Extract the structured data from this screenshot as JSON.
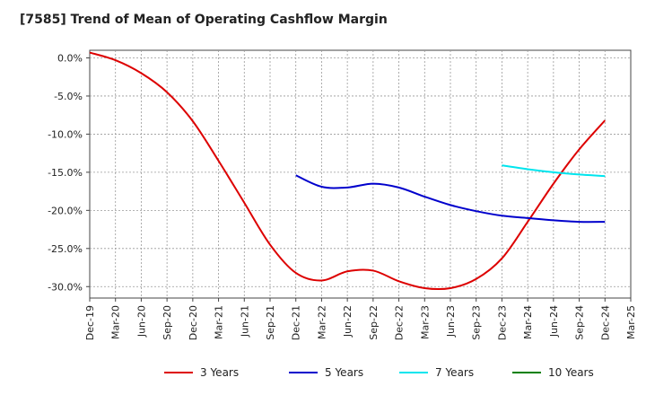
{
  "chart_data": {
    "type": "line",
    "title": "[7585]  Trend of Mean of Operating Cashflow Margin",
    "xlabel": "",
    "ylabel": "",
    "x_ticks": [
      "Dec-19",
      "Mar-20",
      "Jun-20",
      "Sep-20",
      "Dec-20",
      "Mar-21",
      "Jun-21",
      "Sep-21",
      "Dec-21",
      "Mar-22",
      "Jun-22",
      "Sep-22",
      "Dec-22",
      "Mar-23",
      "Jun-23",
      "Sep-23",
      "Dec-23",
      "Mar-24",
      "Jun-24",
      "Sep-24",
      "Dec-24",
      "Mar-25"
    ],
    "y_ticks": [
      0,
      -5,
      -10,
      -15,
      -20,
      -25,
      -30
    ],
    "y_tick_labels": [
      "0.0%",
      "-5.0%",
      "-10.0%",
      "-15.0%",
      "-20.0%",
      "-25.0%",
      "-30.0%"
    ],
    "ylim": [
      -31.5,
      1.0
    ],
    "grid": true,
    "legend_position": "bottom",
    "series": [
      {
        "name": "3 Years",
        "color": "#dd0000",
        "x": [
          "Dec-19",
          "Mar-20",
          "Jun-20",
          "Sep-20",
          "Dec-20",
          "Mar-21",
          "Jun-21",
          "Sep-21",
          "Dec-21",
          "Mar-22",
          "Jun-22",
          "Sep-22",
          "Dec-22",
          "Mar-23",
          "Jun-23",
          "Sep-23",
          "Dec-23",
          "Mar-24",
          "Jun-24",
          "Sep-24",
          "Dec-24"
        ],
        "values": [
          0.7,
          -0.3,
          -2.0,
          -4.5,
          -8.3,
          -13.5,
          -19.0,
          -24.5,
          -28.2,
          -29.2,
          -28.0,
          -27.9,
          -29.3,
          -30.2,
          -30.2,
          -29.0,
          -26.3,
          -21.5,
          -16.5,
          -12.0,
          -8.2
        ]
      },
      {
        "name": "5 Years",
        "color": "#0000cc",
        "x": [
          "Dec-21",
          "Mar-22",
          "Jun-22",
          "Sep-22",
          "Dec-22",
          "Mar-23",
          "Jun-23",
          "Sep-23",
          "Dec-23",
          "Mar-24",
          "Jun-24",
          "Sep-24",
          "Dec-24"
        ],
        "values": [
          -15.4,
          -16.9,
          -17.0,
          -16.5,
          -17.0,
          -18.2,
          -19.3,
          -20.1,
          -20.7,
          -21.0,
          -21.3,
          -21.5,
          -21.5
        ]
      },
      {
        "name": "7 Years",
        "color": "#00e5ee",
        "x": [
          "Dec-23",
          "Mar-24",
          "Jun-24",
          "Sep-24",
          "Dec-24"
        ],
        "values": [
          -14.1,
          -14.6,
          -15.0,
          -15.3,
          -15.5
        ]
      },
      {
        "name": "10 Years",
        "color": "#008000",
        "x": [],
        "values": []
      }
    ]
  }
}
